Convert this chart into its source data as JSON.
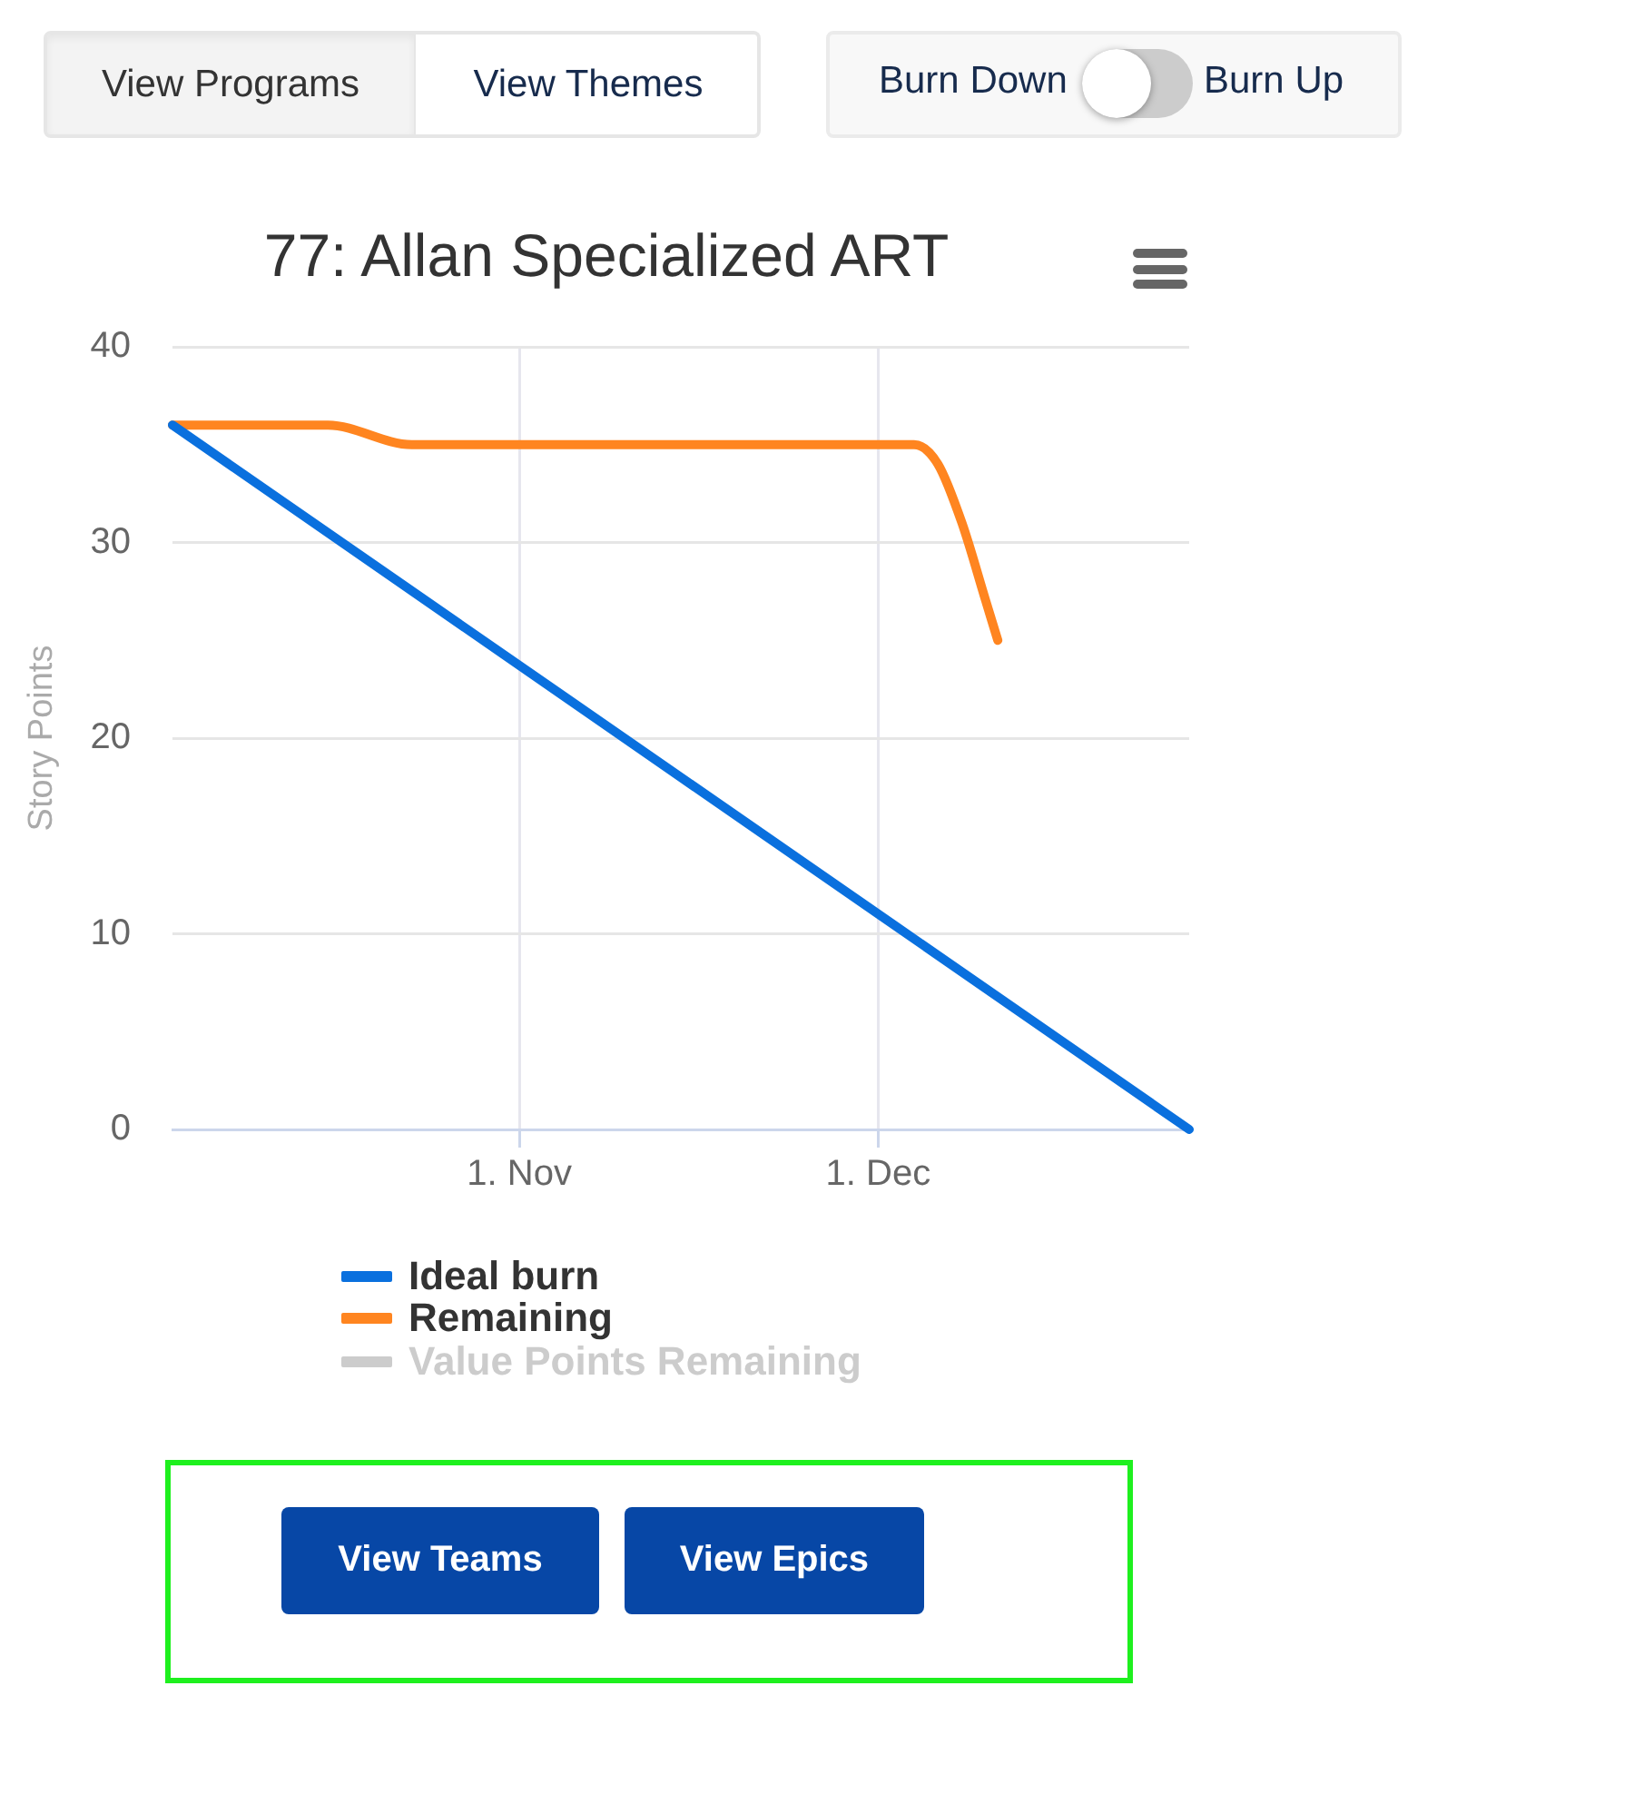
{
  "chart_data": {
    "type": "line",
    "title": "77: Allan Specialized ART",
    "ylabel": "Story Points",
    "series": [
      {
        "name": "Ideal burn",
        "color": "#0a70de",
        "x": [
          "--10-03",
          "--12-27"
        ],
        "values": [
          36,
          0
        ]
      },
      {
        "name": "Remaining",
        "color": "#ff8520",
        "x": [
          "--10-03",
          "--10-16",
          "--10-23",
          "--12-04",
          "--12-06",
          "--12-08",
          "--12-10",
          "--12-11"
        ],
        "values": [
          36,
          36,
          35,
          35,
          34,
          31,
          27,
          25
        ]
      },
      {
        "name": "Value Points Remaining",
        "color": "#cccccc"
      }
    ],
    "xlim": [
      "--10-03",
      "--12-27"
    ],
    "xticks": [
      {
        "value": "--11-01",
        "label": "1. Nov"
      },
      {
        "value": "--12-01",
        "label": "1. Dec"
      }
    ],
    "ylim": [
      0,
      40
    ],
    "yticks": [
      0,
      10,
      20,
      30,
      40
    ],
    "grid": true,
    "legend": "bottom",
    "marker": "none",
    "line_style": "solid",
    "annotations": [
      "View Programs",
      "View Themes",
      "Burn Down",
      "Burn Up",
      "View Teams",
      "View Epics"
    ]
  }
}
